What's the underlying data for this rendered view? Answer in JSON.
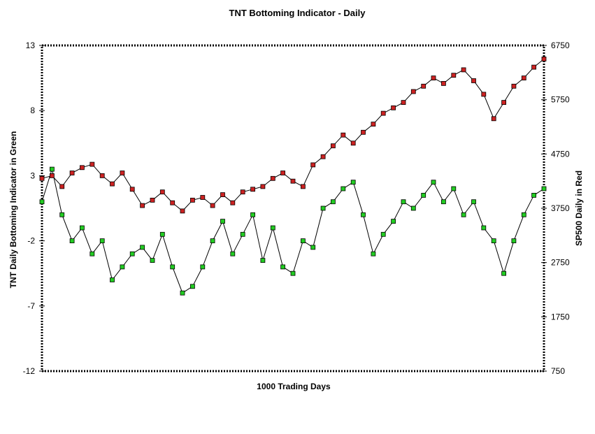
{
  "chart_data": {
    "type": "line",
    "title": "TNT Bottoming Indicator - Daily",
    "xlabel": "1000 Trading Days",
    "ylabel_left": "TNT Daily Bottoming Indicator in Green",
    "ylabel_right": "SP500 Daily in Red",
    "x_range": [
      0,
      1000
    ],
    "ylim_left": [
      -12,
      13
    ],
    "ylim_right": [
      750,
      6750
    ],
    "yticks_left": [
      "13",
      "8",
      "3",
      "-2",
      "-7",
      "-12"
    ],
    "yticks_right": [
      "6750",
      "5750",
      "4750",
      "3750",
      "2750",
      "1750",
      "750"
    ],
    "grid": false,
    "series": [
      {
        "name": "TNT Daily Bottoming Indicator",
        "axis": "left",
        "color": "#22cc22",
        "marker": "square",
        "x": [
          0,
          20,
          40,
          60,
          80,
          100,
          120,
          140,
          160,
          180,
          200,
          220,
          240,
          260,
          280,
          300,
          320,
          340,
          360,
          380,
          400,
          420,
          440,
          460,
          480,
          500,
          520,
          540,
          560,
          580,
          600,
          620,
          640,
          660,
          680,
          700,
          720,
          740,
          760,
          780,
          800,
          820,
          840,
          860,
          880,
          900,
          920,
          940,
          960,
          980,
          1000
        ],
        "values": [
          1.0,
          3.5,
          0.0,
          -2.0,
          -1.0,
          -3.0,
          -2.0,
          -5.0,
          -4.0,
          -3.0,
          -2.5,
          -3.5,
          -1.5,
          -4.0,
          -6.0,
          -5.5,
          -4.0,
          -2.0,
          -0.5,
          -3.0,
          -1.5,
          0.0,
          -3.5,
          -1.0,
          -4.0,
          -4.5,
          -2.0,
          -2.5,
          0.5,
          1.0,
          2.0,
          2.5,
          0.0,
          -3.0,
          -1.5,
          -0.5,
          1.0,
          0.5,
          1.5,
          2.5,
          1.0,
          2.0,
          0.0,
          1.0,
          -1.0,
          -2.0,
          -4.5,
          -2.0,
          0.0,
          1.5,
          2.0
        ]
      },
      {
        "name": "SP500 Daily",
        "axis": "right",
        "color": "#cc2222",
        "marker": "square",
        "x": [
          0,
          20,
          40,
          60,
          80,
          100,
          120,
          140,
          160,
          180,
          200,
          220,
          240,
          260,
          280,
          300,
          320,
          340,
          360,
          380,
          400,
          420,
          440,
          460,
          480,
          500,
          520,
          540,
          560,
          580,
          600,
          620,
          640,
          660,
          680,
          700,
          720,
          740,
          760,
          780,
          800,
          820,
          840,
          860,
          880,
          900,
          920,
          940,
          960,
          980,
          1000
        ],
        "values": [
          4300,
          4350,
          4150,
          4400,
          4500,
          4560,
          4350,
          4200,
          4400,
          4100,
          3800,
          3900,
          4050,
          3850,
          3700,
          3900,
          3950,
          3800,
          4000,
          3850,
          4050,
          4100,
          4150,
          4300,
          4400,
          4250,
          4150,
          4550,
          4700,
          4900,
          5100,
          4950,
          5150,
          5300,
          5500,
          5600,
          5700,
          5900,
          6000,
          6150,
          6050,
          6200,
          6300,
          6100,
          5850,
          5400,
          5700,
          6000,
          6150,
          6350,
          6500
        ]
      }
    ]
  }
}
